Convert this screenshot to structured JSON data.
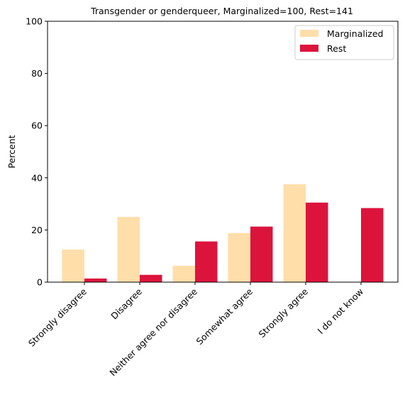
{
  "chart_data": {
    "type": "bar",
    "title": "Transgender or genderqueer, Marginalized=100, Rest=141",
    "xlabel": "",
    "ylabel": "Percent",
    "ylim": [
      0,
      100
    ],
    "yticks": [
      "0",
      "20",
      "40",
      "60",
      "80",
      "100"
    ],
    "grid": false,
    "legend_position": "top-right",
    "categories": [
      "Strongly disagree",
      "Disagree",
      "Neither agree nor disagree",
      "Somewhat agree",
      "Strongly agree",
      "I do not know"
    ],
    "series": [
      {
        "name": "Marginalized",
        "color": "#FFDEAA",
        "values": [
          12.5,
          25.0,
          6.3,
          18.8,
          37.5,
          0.0
        ]
      },
      {
        "name": "Rest",
        "color": "#DC143C",
        "values": [
          1.4,
          2.8,
          15.6,
          21.3,
          30.5,
          28.4
        ]
      }
    ]
  }
}
